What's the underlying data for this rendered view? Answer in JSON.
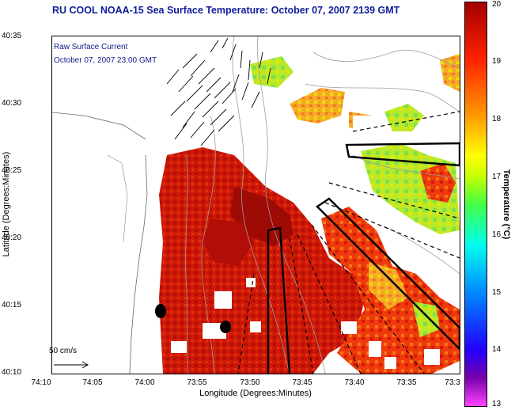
{
  "title": "RU COOL  NOAA-15  Sea Surface Temperature:  October 07, 2007 2139 GMT",
  "axes": {
    "xlabel": "Longitude (Degrees:Minutes)",
    "ylabel": "Latitude (Degrees:Minutes)",
    "xticks": [
      "74:10",
      "74:05",
      "74:00",
      "73:55",
      "73:50",
      "73:45",
      "73:40",
      "73:35",
      "73:3"
    ],
    "yticks": [
      "40:35",
      "40:30",
      "40:25",
      "40:20",
      "40:15",
      "40:10"
    ]
  },
  "current_legend": {
    "line1": "Raw Surface Current",
    "line2": "October 07, 2007 23:00 GMT",
    "scale": "50 cm/s"
  },
  "colorbar": {
    "label": "Temperature (°C)",
    "ticks": [
      "20",
      "19",
      "18",
      "17",
      "16",
      "15",
      "14",
      "13"
    ],
    "range": [
      13,
      20
    ],
    "colors": {
      "low": "#ff44ff",
      "mid": "#44ff44",
      "high": "#a30000"
    }
  },
  "colors": {
    "title": "#101c9a",
    "land": "#ffffff",
    "sst_warm": "#d01808"
  }
}
